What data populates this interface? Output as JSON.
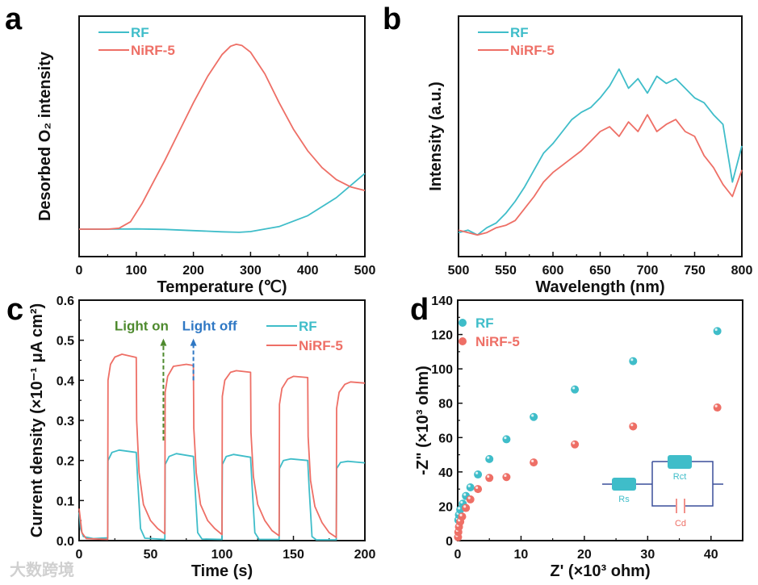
{
  "colors": {
    "RF": "#3fbdc9",
    "NiRF-5": "#ee6f66",
    "light_on": "#4e8a2e",
    "light_off": "#2f78c4",
    "circuit": "#3a4f9a"
  },
  "watermark": "大数跨境",
  "chart_data": [
    {
      "panel": "a",
      "type": "line",
      "xlabel": "Temperature (℃)",
      "ylabel": "Desorbed O₂ intensity",
      "xlim": [
        0,
        500
      ],
      "ylim": [
        0,
        1
      ],
      "xticks": [
        "0",
        "100",
        "200",
        "300",
        "400",
        "500"
      ],
      "legend": "top-left",
      "series": [
        {
          "name": "RF",
          "x": [
            0,
            50,
            100,
            150,
            200,
            250,
            280,
            300,
            350,
            400,
            450,
            500
          ],
          "y": [
            0.114,
            0.114,
            0.115,
            0.113,
            0.108,
            0.103,
            0.101,
            0.104,
            0.125,
            0.17,
            0.245,
            0.346
          ]
        },
        {
          "name": "NiRF-5",
          "x": [
            0,
            50,
            70,
            90,
            110,
            130,
            150,
            175,
            200,
            225,
            250,
            265,
            275,
            285,
            300,
            325,
            350,
            375,
            400,
            425,
            450,
            475,
            500
          ],
          "y": [
            0.114,
            0.114,
            0.118,
            0.145,
            0.22,
            0.31,
            0.4,
            0.52,
            0.64,
            0.75,
            0.84,
            0.875,
            0.883,
            0.878,
            0.85,
            0.76,
            0.64,
            0.53,
            0.44,
            0.37,
            0.32,
            0.29,
            0.275
          ]
        }
      ]
    },
    {
      "panel": "b",
      "type": "line",
      "xlabel": "Wavelength (nm)",
      "ylabel": "Intensity (a.u.)",
      "xlim": [
        500,
        800
      ],
      "ylim": [
        0,
        1
      ],
      "xticks": [
        "500",
        "550",
        "600",
        "650",
        "700",
        "750",
        "800"
      ],
      "legend": "top-left",
      "series": [
        {
          "name": "RF",
          "x": [
            500,
            510,
            520,
            530,
            540,
            550,
            560,
            570,
            580,
            590,
            600,
            610,
            620,
            630,
            640,
            650,
            660,
            670,
            680,
            690,
            700,
            710,
            720,
            730,
            740,
            750,
            760,
            770,
            780,
            790,
            800
          ],
          "y": [
            0.1,
            0.11,
            0.09,
            0.12,
            0.14,
            0.18,
            0.23,
            0.29,
            0.36,
            0.43,
            0.47,
            0.52,
            0.57,
            0.6,
            0.62,
            0.66,
            0.71,
            0.78,
            0.7,
            0.74,
            0.68,
            0.75,
            0.72,
            0.74,
            0.7,
            0.66,
            0.64,
            0.59,
            0.55,
            0.31,
            0.46
          ]
        },
        {
          "name": "NiRF-5",
          "x": [
            500,
            510,
            520,
            530,
            540,
            550,
            560,
            570,
            580,
            590,
            600,
            610,
            620,
            630,
            640,
            650,
            660,
            670,
            680,
            690,
            700,
            710,
            720,
            730,
            740,
            750,
            760,
            770,
            780,
            790,
            800
          ],
          "y": [
            0.11,
            0.1,
            0.09,
            0.1,
            0.12,
            0.13,
            0.15,
            0.2,
            0.25,
            0.31,
            0.35,
            0.38,
            0.41,
            0.44,
            0.48,
            0.52,
            0.54,
            0.5,
            0.56,
            0.52,
            0.59,
            0.52,
            0.55,
            0.57,
            0.52,
            0.5,
            0.42,
            0.37,
            0.3,
            0.25,
            0.36
          ]
        }
      ]
    },
    {
      "panel": "c",
      "type": "line",
      "xlabel": "Time (s)",
      "ylabel": "Current density (×10⁻¹ μA cm²)",
      "xlim": [
        0,
        200
      ],
      "ylim": [
        0,
        0.6
      ],
      "xticks": [
        "0",
        "50",
        "100",
        "150",
        "200"
      ],
      "yticks": [
        "0.0",
        "0.1",
        "0.2",
        "0.3",
        "0.4",
        "0.5",
        "0.6"
      ],
      "legend": "top-right",
      "annotations": [
        {
          "text": "Light on",
          "x": 59,
          "y_from": 0.25,
          "y_to": 0.5
        },
        {
          "text": "Light off",
          "x": 80,
          "y_from": 0.4,
          "y_to": 0.5
        }
      ],
      "series": [
        {
          "name": "RF",
          "x": [
            0,
            1,
            3,
            10,
            20,
            20.2,
            23,
            28,
            40,
            41,
            43,
            46,
            60,
            60.2,
            63,
            68,
            80,
            81,
            83,
            86,
            100,
            100.2,
            103,
            108,
            120,
            121,
            123,
            126,
            140,
            140.2,
            143,
            148,
            160,
            161,
            163,
            166,
            180,
            180.2,
            183,
            188,
            200
          ],
          "y": [
            0.07,
            0.03,
            0.01,
            0.005,
            0.007,
            0.2,
            0.22,
            0.226,
            0.22,
            0.15,
            0.03,
            0.006,
            0.003,
            0.19,
            0.21,
            0.217,
            0.21,
            0.14,
            0.02,
            0.004,
            0.003,
            0.19,
            0.21,
            0.215,
            0.208,
            0.14,
            0.02,
            0.003,
            0.003,
            0.18,
            0.2,
            0.204,
            0.2,
            0.13,
            0.01,
            0.002,
            0.002,
            0.18,
            0.195,
            0.198,
            0.194
          ]
        },
        {
          "name": "NiRF-5",
          "x": [
            0,
            2,
            5,
            20,
            20.2,
            22,
            25,
            30,
            40,
            40.3,
            42,
            45,
            50,
            55,
            60,
            60.2,
            62,
            66,
            75,
            80,
            80.3,
            82,
            85,
            90,
            95,
            100,
            100.2,
            102,
            106,
            110,
            120,
            120.3,
            122,
            125,
            130,
            135,
            140,
            140.2,
            142,
            146,
            150,
            160,
            160.3,
            162,
            165,
            170,
            175,
            180,
            180.2,
            182,
            186,
            190,
            200
          ],
          "y": [
            0.08,
            0.02,
            0.005,
            0.003,
            0.4,
            0.44,
            0.458,
            0.465,
            0.457,
            0.3,
            0.17,
            0.09,
            0.05,
            0.03,
            0.017,
            0.37,
            0.41,
            0.435,
            0.44,
            0.437,
            0.28,
            0.17,
            0.09,
            0.05,
            0.03,
            0.015,
            0.36,
            0.4,
            0.42,
            0.424,
            0.42,
            0.27,
            0.16,
            0.09,
            0.05,
            0.025,
            0.012,
            0.34,
            0.38,
            0.403,
            0.41,
            0.407,
            0.26,
            0.15,
            0.085,
            0.045,
            0.02,
            0.008,
            0.33,
            0.37,
            0.39,
            0.396,
            0.393
          ]
        }
      ]
    },
    {
      "panel": "d",
      "type": "scatter",
      "xlabel": "Z' (×10³ ohm)",
      "ylabel": "-Z\" (×10³ ohm)",
      "xlim": [
        0,
        45
      ],
      "ylim": [
        0,
        140
      ],
      "xticks": [
        "0",
        "10",
        "20",
        "30",
        "40"
      ],
      "yticks": [
        "0",
        "20",
        "40",
        "60",
        "80",
        "100",
        "120",
        "140"
      ],
      "legend": "top-left",
      "inset": {
        "labels": [
          "Rs",
          "Rct",
          "Cd"
        ]
      },
      "series": [
        {
          "name": "RF",
          "x": [
            0.1,
            0.2,
            0.4,
            0.8,
            1.3,
            2,
            3.2,
            5,
            7.7,
            12,
            18.5,
            27.7,
            41
          ],
          "y": [
            12,
            15,
            18,
            21.5,
            26,
            31,
            38.5,
            47.5,
            59,
            72,
            88,
            104.5,
            122
          ]
        },
        {
          "name": "NiRF-5",
          "x": [
            0.05,
            0.1,
            0.2,
            0.4,
            0.7,
            1.3,
            2,
            3.2,
            5,
            7.7,
            12,
            18.5,
            27.7,
            41
          ],
          "y": [
            2,
            5,
            8,
            11,
            14,
            19,
            24,
            30,
            36.5,
            37,
            45.5,
            56,
            66.5,
            77.5
          ]
        }
      ]
    }
  ]
}
